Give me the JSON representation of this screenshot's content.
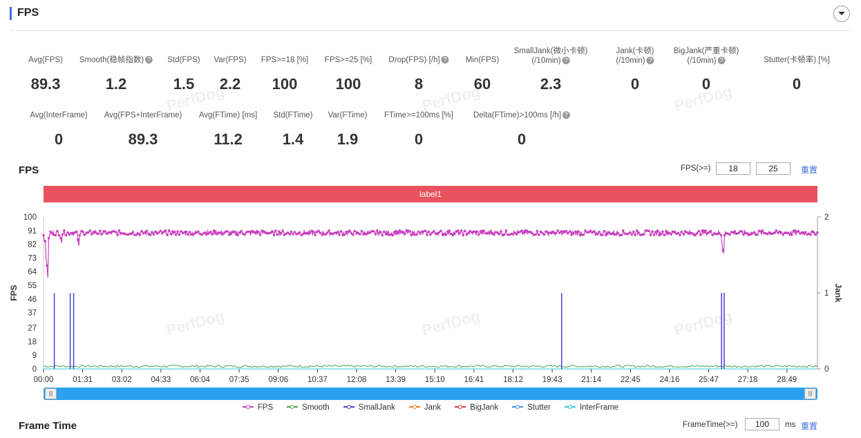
{
  "header": {
    "title": "FPS"
  },
  "metrics_row1": [
    {
      "label": "Avg(FPS)",
      "value": "89.3",
      "help": false
    },
    {
      "label": "Smooth(稳帧指数)",
      "value": "1.2",
      "help": true
    },
    {
      "label": "Std(FPS)",
      "value": "1.5",
      "help": false
    },
    {
      "label": "Var(FPS)",
      "value": "2.2",
      "help": false
    },
    {
      "label": "FPS>=18 [%]",
      "value": "100",
      "help": false
    },
    {
      "label": "FPS>=25 [%]",
      "value": "100",
      "help": false
    },
    {
      "label": "Drop(FPS) [/h]",
      "value": "8",
      "help": true
    },
    {
      "label": "Min(FPS)",
      "value": "60",
      "help": false
    },
    {
      "label": "SmallJank(微小卡顿)",
      "label2": "(/10min)",
      "value": "2.3",
      "help": true
    },
    {
      "label": "Jank(卡顿)",
      "label2": "(/10min)",
      "value": "0",
      "help": true
    },
    {
      "label": "BigJank(严重卡顿)",
      "label2": "(/10min)",
      "value": "0",
      "help": true
    },
    {
      "label": "Stutter(卡顿率) [%]",
      "value": "0",
      "help": false
    }
  ],
  "metrics_row2": [
    {
      "label": "Avg(InterFrame)",
      "value": "0",
      "help": false
    },
    {
      "label": "Avg(FPS+InterFrame)",
      "value": "89.3",
      "help": false
    },
    {
      "label": "Avg(FTime) [ms]",
      "value": "11.2",
      "help": false
    },
    {
      "label": "Std(FTime)",
      "value": "1.4",
      "help": false
    },
    {
      "label": "Var(FTime)",
      "value": "1.9",
      "help": false
    },
    {
      "label": "FTime>=100ms [%]",
      "value": "0",
      "help": false
    },
    {
      "label": "Delta(FTime)>100ms [/h]",
      "value": "0",
      "help": true
    }
  ],
  "watermark": "PerfDog",
  "fps_section": {
    "title": "FPS",
    "threshold_label": "FPS(>=)",
    "threshold_1": "18",
    "threshold_2": "25",
    "reset": "重置",
    "label_bar": "label1"
  },
  "frametime_section": {
    "title": "Frame Time",
    "threshold_label": "FrameTime(>=)",
    "threshold_value": "100",
    "unit": "ms",
    "reset": "重置"
  },
  "legend": [
    {
      "name": "FPS",
      "color": "#c93fbf"
    },
    {
      "name": "Smooth",
      "color": "#3aa845"
    },
    {
      "name": "SmallJank",
      "color": "#4a3fd4"
    },
    {
      "name": "Jank",
      "color": "#f07c2a"
    },
    {
      "name": "BigJank",
      "color": "#d9363e"
    },
    {
      "name": "Stutter",
      "color": "#3d8ee8"
    },
    {
      "name": "InterFrame",
      "color": "#2ec7d6"
    }
  ],
  "chart_data": {
    "type": "line",
    "xlabel": "",
    "ylabel": "FPS",
    "y2label": "Jank",
    "ylim": [
      0,
      100
    ],
    "y2lim": [
      0,
      2
    ],
    "yticks": [
      0,
      9,
      18,
      27,
      37,
      46,
      55,
      64,
      73,
      82,
      91,
      100
    ],
    "y2ticks": [
      0,
      1,
      2
    ],
    "xlim_seconds": [
      0,
      1800
    ],
    "xticks": [
      "00:00",
      "01:31",
      "03:02",
      "04:33",
      "06:04",
      "07:35",
      "09:06",
      "10:37",
      "12:08",
      "13:39",
      "15:10",
      "16:41",
      "18:12",
      "19:43",
      "21:14",
      "22:45",
      "24:16",
      "25:47",
      "27:18",
      "28:49"
    ],
    "grid": false,
    "legend_position": "bottom",
    "series": [
      {
        "name": "FPS",
        "axis": "left",
        "baseline": 89.5,
        "noise": 2,
        "dips": [
          [
            0,
            88
          ],
          [
            3,
            84
          ],
          [
            5,
            72
          ],
          [
            7,
            68
          ],
          [
            9,
            60
          ],
          [
            11,
            86
          ],
          [
            14,
            88
          ],
          [
            40,
            86
          ],
          [
            42,
            83
          ],
          [
            80,
            85
          ],
          [
            82,
            81
          ],
          [
            84,
            88
          ],
          [
            1575,
            88
          ],
          [
            1577,
            82
          ],
          [
            1579,
            78
          ],
          [
            1581,
            76
          ],
          [
            1583,
            88
          ]
        ]
      },
      {
        "name": "Smooth",
        "axis": "left",
        "baseline": 1,
        "noise": 1.5
      },
      {
        "name": "SmallJank",
        "axis": "right",
        "spikes": [
          25,
          62,
          70,
          1205,
          1577,
          1583
        ]
      },
      {
        "name": "Jank",
        "axis": "right",
        "values": []
      },
      {
        "name": "BigJank",
        "axis": "right",
        "values": []
      },
      {
        "name": "Stutter",
        "axis": "right",
        "values": []
      },
      {
        "name": "InterFrame",
        "axis": "left",
        "baseline": 0
      }
    ]
  }
}
